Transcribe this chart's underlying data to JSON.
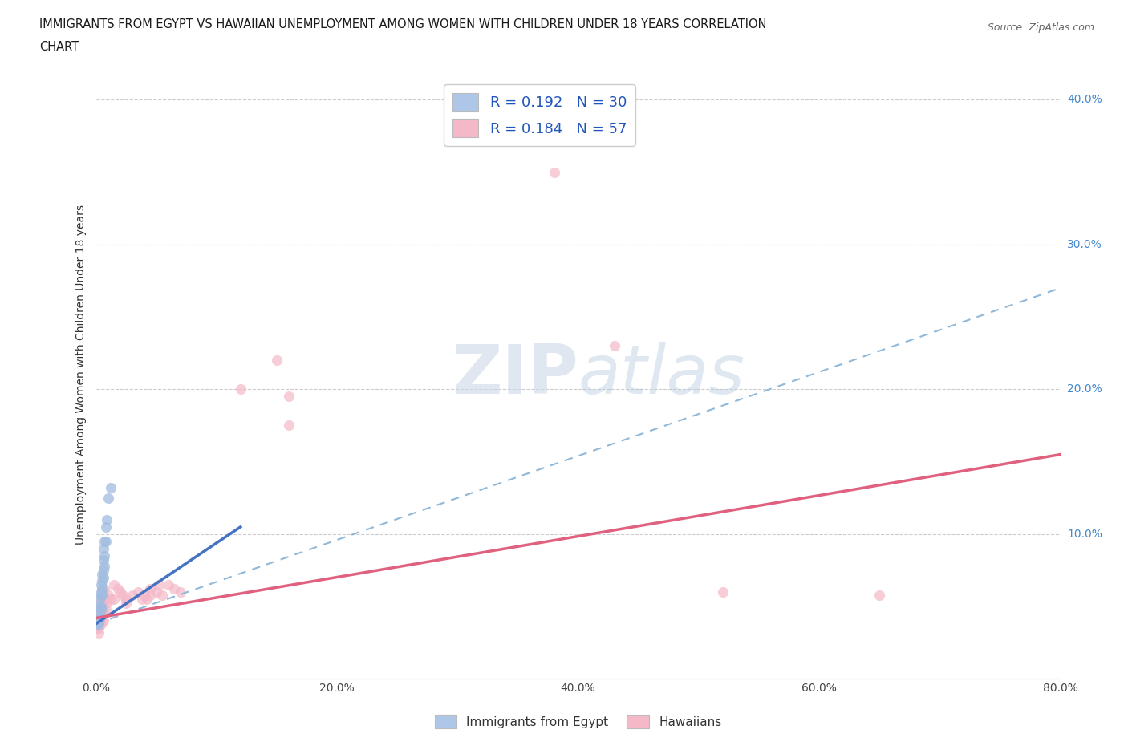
{
  "title_line1": "IMMIGRANTS FROM EGYPT VS HAWAIIAN UNEMPLOYMENT AMONG WOMEN WITH CHILDREN UNDER 18 YEARS CORRELATION",
  "title_line2": "CHART",
  "source_text": "Source: ZipAtlas.com",
  "ylabel": "Unemployment Among Women with Children Under 18 years",
  "xlim": [
    0.0,
    0.8
  ],
  "ylim": [
    0.0,
    0.42
  ],
  "xtick_labels": [
    "0.0%",
    "20.0%",
    "40.0%",
    "60.0%",
    "80.0%"
  ],
  "xtick_vals": [
    0.0,
    0.2,
    0.4,
    0.6,
    0.8
  ],
  "ytick_labels": [
    "10.0%",
    "20.0%",
    "30.0%",
    "40.0%"
  ],
  "ytick_vals": [
    0.1,
    0.2,
    0.3,
    0.4
  ],
  "legend_items": [
    {
      "label": "R = 0.192   N = 30",
      "color": "#aec6e8"
    },
    {
      "label": "R = 0.184   N = 57",
      "color": "#f4b8c8"
    }
  ],
  "legend_bottom_labels": [
    "Immigrants from Egypt",
    "Hawaiians"
  ],
  "blue_scatter_color": "#a0bce0",
  "pink_scatter_color": "#f4b8c8",
  "blue_line_color": "#4472c4",
  "pink_line_color": "#e06080",
  "dashed_line_color": "#90b8d8",
  "watermark_text": "ZIPatlas",
  "watermark_color": "#dce8f0",
  "background_color": "#ffffff",
  "blue_points": [
    [
      0.001,
      0.04
    ],
    [
      0.001,
      0.038
    ],
    [
      0.002,
      0.042
    ],
    [
      0.002,
      0.04
    ],
    [
      0.002,
      0.038
    ],
    [
      0.003,
      0.055
    ],
    [
      0.003,
      0.05
    ],
    [
      0.003,
      0.045
    ],
    [
      0.003,
      0.042
    ],
    [
      0.004,
      0.065
    ],
    [
      0.004,
      0.06
    ],
    [
      0.004,
      0.058
    ],
    [
      0.004,
      0.05
    ],
    [
      0.004,
      0.048
    ],
    [
      0.005,
      0.072
    ],
    [
      0.005,
      0.068
    ],
    [
      0.005,
      0.062
    ],
    [
      0.005,
      0.058
    ],
    [
      0.006,
      0.09
    ],
    [
      0.006,
      0.082
    ],
    [
      0.006,
      0.075
    ],
    [
      0.006,
      0.07
    ],
    [
      0.007,
      0.095
    ],
    [
      0.007,
      0.085
    ],
    [
      0.007,
      0.078
    ],
    [
      0.008,
      0.105
    ],
    [
      0.008,
      0.095
    ],
    [
      0.009,
      0.11
    ],
    [
      0.01,
      0.125
    ],
    [
      0.012,
      0.132
    ]
  ],
  "pink_points": [
    [
      0.001,
      0.038
    ],
    [
      0.001,
      0.035
    ],
    [
      0.002,
      0.042
    ],
    [
      0.002,
      0.038
    ],
    [
      0.002,
      0.035
    ],
    [
      0.002,
      0.032
    ],
    [
      0.003,
      0.048
    ],
    [
      0.003,
      0.044
    ],
    [
      0.003,
      0.04
    ],
    [
      0.003,
      0.038
    ],
    [
      0.004,
      0.055
    ],
    [
      0.004,
      0.05
    ],
    [
      0.004,
      0.045
    ],
    [
      0.004,
      0.042
    ],
    [
      0.004,
      0.038
    ],
    [
      0.005,
      0.06
    ],
    [
      0.005,
      0.055
    ],
    [
      0.005,
      0.048
    ],
    [
      0.005,
      0.044
    ],
    [
      0.006,
      0.052
    ],
    [
      0.006,
      0.046
    ],
    [
      0.006,
      0.04
    ],
    [
      0.007,
      0.062
    ],
    [
      0.007,
      0.055
    ],
    [
      0.008,
      0.055
    ],
    [
      0.008,
      0.048
    ],
    [
      0.009,
      0.052
    ],
    [
      0.01,
      0.058
    ],
    [
      0.012,
      0.055
    ],
    [
      0.015,
      0.065
    ],
    [
      0.015,
      0.055
    ],
    [
      0.018,
      0.062
    ],
    [
      0.02,
      0.06
    ],
    [
      0.022,
      0.058
    ],
    [
      0.025,
      0.055
    ],
    [
      0.025,
      0.052
    ],
    [
      0.03,
      0.058
    ],
    [
      0.035,
      0.06
    ],
    [
      0.038,
      0.055
    ],
    [
      0.04,
      0.058
    ],
    [
      0.042,
      0.055
    ],
    [
      0.045,
      0.062
    ],
    [
      0.045,
      0.058
    ],
    [
      0.05,
      0.06
    ],
    [
      0.052,
      0.065
    ],
    [
      0.055,
      0.058
    ],
    [
      0.06,
      0.065
    ],
    [
      0.065,
      0.062
    ],
    [
      0.07,
      0.06
    ],
    [
      0.12,
      0.2
    ],
    [
      0.15,
      0.22
    ],
    [
      0.16,
      0.175
    ],
    [
      0.16,
      0.195
    ],
    [
      0.38,
      0.35
    ],
    [
      0.43,
      0.23
    ],
    [
      0.52,
      0.06
    ],
    [
      0.65,
      0.058
    ]
  ],
  "blue_line_x": [
    0.0,
    0.12
  ],
  "blue_line_y": [
    0.038,
    0.105
  ],
  "dashed_line_x": [
    0.0,
    0.8
  ],
  "dashed_line_y": [
    0.038,
    0.27
  ],
  "pink_line_x": [
    0.0,
    0.8
  ],
  "pink_line_y": [
    0.042,
    0.155
  ]
}
